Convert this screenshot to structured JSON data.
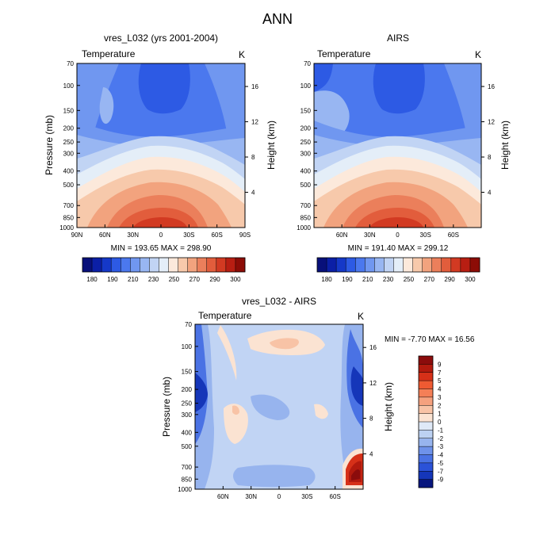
{
  "figure": {
    "title": "ANN"
  },
  "chart_data": [
    {
      "type": "heatmap",
      "title": "vres_L032 (yrs 2001-2004)",
      "variable_label": "Temperature",
      "units": "K",
      "ylabel": "Pressure (mb)",
      "ylabel_right": "Height (km)",
      "y_ticks": [
        "70",
        "100",
        "150",
        "200",
        "250",
        "300",
        "400",
        "500",
        "700",
        "850",
        "1000"
      ],
      "y_right_ticks": [
        "16",
        "12",
        "8",
        "4"
      ],
      "x_ticks": [
        "90N",
        "60N",
        "30N",
        "0",
        "30S",
        "60S",
        "90S"
      ],
      "xlim": [
        "90N",
        "90S"
      ],
      "ylim": [
        1000,
        70
      ],
      "y_scale": "log",
      "stats": "MIN = 193.65  MAX = 298.90",
      "stat_min": 193.65,
      "stat_max": 298.9,
      "colorbar": {
        "orientation": "horizontal",
        "labels": [
          "180",
          "190",
          "210",
          "230",
          "250",
          "270",
          "290",
          "300"
        ],
        "colors": [
          "#08107a",
          "#0b1fa6",
          "#1538c8",
          "#2d5ae4",
          "#4b78ee",
          "#7097f0",
          "#98b6f2",
          "#c1d4f4",
          "#e4eef8",
          "#fce9db",
          "#f7c9ab",
          "#f2a37e",
          "#eb7f5b",
          "#e25d3c",
          "#d23a22",
          "#b81e12",
          "#8c0c06"
        ]
      }
    },
    {
      "type": "heatmap",
      "title": "AIRS",
      "variable_label": "Temperature",
      "units": "K",
      "ylabel_right": "Height (km)",
      "y_ticks": [
        "70",
        "100",
        "150",
        "200",
        "250",
        "300",
        "400",
        "500",
        "700",
        "850",
        "1000"
      ],
      "y_right_ticks": [
        "16",
        "12",
        "8",
        "4"
      ],
      "x_ticks": [
        "60N",
        "30N",
        "0",
        "30S",
        "60S"
      ],
      "ylim": [
        1000,
        70
      ],
      "y_scale": "log",
      "stats": "MIN = 191.40  MAX = 299.12",
      "stat_min": 191.4,
      "stat_max": 299.12,
      "colorbar": {
        "orientation": "horizontal",
        "labels": [
          "180",
          "190",
          "210",
          "230",
          "250",
          "270",
          "290",
          "300"
        ],
        "colors": [
          "#08107a",
          "#0b1fa6",
          "#1538c8",
          "#2d5ae4",
          "#4b78ee",
          "#7097f0",
          "#98b6f2",
          "#c1d4f4",
          "#e4eef8",
          "#fce9db",
          "#f7c9ab",
          "#f2a37e",
          "#eb7f5b",
          "#e25d3c",
          "#d23a22",
          "#b81e12",
          "#8c0c06"
        ]
      }
    },
    {
      "type": "heatmap",
      "title": "vres_L032 - AIRS",
      "variable_label": "Temperature",
      "units": "K",
      "ylabel": "Pressure (mb)",
      "ylabel_right": "Height (km)",
      "y_ticks": [
        "70",
        "100",
        "150",
        "200",
        "250",
        "300",
        "400",
        "500",
        "700",
        "850",
        "1000"
      ],
      "y_right_ticks": [
        "16",
        "12",
        "8",
        "4"
      ],
      "x_ticks": [
        "60N",
        "30N",
        "0",
        "30S",
        "60S"
      ],
      "ylim": [
        1000,
        70
      ],
      "y_scale": "log",
      "stats": "MIN =  -7.70  MAX =  16.56",
      "stat_min": -7.7,
      "stat_max": 16.56,
      "colorbar": {
        "orientation": "vertical",
        "labels": [
          "9",
          "7",
          "5",
          "4",
          "3",
          "2",
          "1",
          "0",
          "-1",
          "-2",
          "-3",
          "-4",
          "-5",
          "-7",
          "-9"
        ],
        "colors": [
          "#8b0c0c",
          "#b21a0e",
          "#d63018",
          "#ef5a32",
          "#f47f57",
          "#f5a17e",
          "#f8c3a6",
          "#fbe3d2",
          "#dfe9f7",
          "#bcd1f2",
          "#97b4ee",
          "#6e92ea",
          "#4a72e4",
          "#2b52d8",
          "#1536b9",
          "#07167e"
        ]
      }
    }
  ]
}
